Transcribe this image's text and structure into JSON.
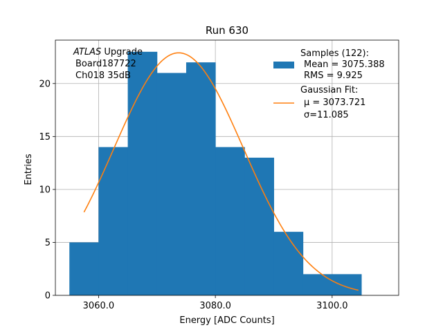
{
  "chart_data": {
    "type": "bar",
    "title": "Run 630",
    "xlabel": "Energy [ADC Counts]",
    "ylabel": "Entries",
    "xlim": [
      3052.6,
      3111.4
    ],
    "ylim": [
      0,
      24.1
    ],
    "grid": true,
    "bins": [
      {
        "x0": 3055,
        "x1": 3060,
        "value": 5
      },
      {
        "x0": 3060,
        "x1": 3065,
        "value": 14
      },
      {
        "x0": 3065,
        "x1": 3070,
        "value": 23
      },
      {
        "x0": 3070,
        "x1": 3075,
        "value": 21
      },
      {
        "x0": 3075,
        "x1": 3080,
        "value": 22
      },
      {
        "x0": 3080,
        "x1": 3085,
        "value": 14
      },
      {
        "x0": 3085,
        "x1": 3090,
        "value": 13
      },
      {
        "x0": 3090,
        "x1": 3095,
        "value": 6
      },
      {
        "x0": 3095,
        "x1": 3100,
        "value": 2
      },
      {
        "x0": 3100,
        "x1": 3105,
        "value": 2
      }
    ],
    "fit": {
      "mu": 3073.721,
      "sigma": 11.085,
      "amplitude": 22.9,
      "x_range": [
        3057.5,
        3104.5
      ]
    },
    "xticks": [
      {
        "value": 3060,
        "label": "3060.0"
      },
      {
        "value": 3080,
        "label": "3080.0"
      },
      {
        "value": 3100,
        "label": "3100.0"
      }
    ],
    "yticks": [
      {
        "value": 0,
        "label": "0"
      },
      {
        "value": 5,
        "label": "5"
      },
      {
        "value": 10,
        "label": "10"
      },
      {
        "value": 15,
        "label": "15"
      },
      {
        "value": 20,
        "label": "20"
      }
    ],
    "colors": {
      "hist": "#1f77b4",
      "fit": "#ff7f0e",
      "grid": "#b0b0b0"
    },
    "annotation": {
      "experiment": "ATLAS",
      "experiment_suffix": " Upgrade",
      "board": "Board187722",
      "channel": "Ch018 35dB"
    },
    "legend": {
      "placement": "top-right",
      "hist_title": "Samples (122):",
      "hist_mean": "Mean = 3075.388",
      "hist_rms": "RMS = 9.925",
      "fit_title": "Gaussian Fit:",
      "fit_mu": "μ = 3073.721",
      "fit_sigma": "σ=11.085"
    }
  }
}
